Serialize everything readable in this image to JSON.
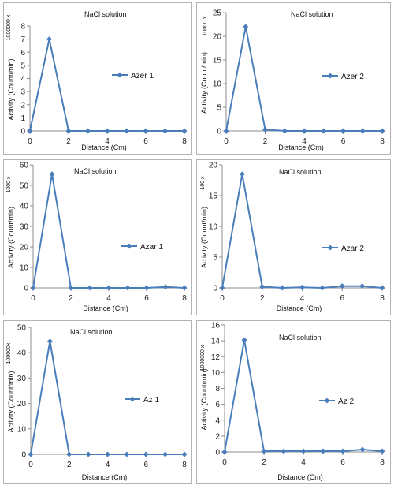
{
  "chart_data": [
    {
      "type": "line",
      "title": "NaCl solution",
      "xlabel": "Distance (Cm)",
      "ylabel": "Activity (Count/min)",
      "multiplier_label": "1000000 x",
      "xlim": [
        0,
        8
      ],
      "ylim": [
        0,
        8
      ],
      "xticks": [
        0,
        2,
        4,
        6,
        8
      ],
      "yticks": [
        0,
        1,
        2,
        3,
        4,
        5,
        6,
        7,
        8
      ],
      "legend_placement": "right",
      "series": [
        {
          "name": "Azer 1",
          "x": [
            0,
            1,
            2,
            3,
            4,
            5,
            6,
            7,
            8
          ],
          "y": [
            0,
            7,
            0,
            0,
            0,
            0,
            0,
            0,
            0
          ]
        }
      ]
    },
    {
      "type": "line",
      "title": "NaCl solution",
      "xlabel": "Distance (Cm)",
      "ylabel": "Activity (Count/min)",
      "multiplier_label": "10000 x",
      "xlim": [
        0,
        8
      ],
      "ylim": [
        0,
        25
      ],
      "xticks": [
        0,
        2,
        4,
        6,
        8
      ],
      "yticks": [
        0,
        5,
        10,
        15,
        20,
        25
      ],
      "legend_placement": "right",
      "series": [
        {
          "name": "Azer 2",
          "x": [
            0,
            1,
            2,
            3,
            4,
            5,
            6,
            7,
            8
          ],
          "y": [
            0,
            22,
            0.3,
            0,
            0,
            0,
            0,
            0,
            0
          ]
        }
      ]
    },
    {
      "type": "line",
      "title": "NaCl solution",
      "xlabel": "Distance (Cm)",
      "ylabel": "Activity (Count/min)",
      "multiplier_label": "1000 x",
      "xlim": [
        0,
        8
      ],
      "ylim": [
        0,
        60
      ],
      "xticks": [
        0,
        2,
        4,
        6,
        8
      ],
      "yticks": [
        0,
        10,
        20,
        30,
        40,
        50,
        60
      ],
      "legend_placement": "right",
      "series": [
        {
          "name": "Azar 1",
          "x": [
            0,
            1,
            2,
            3,
            4,
            5,
            6,
            7,
            8
          ],
          "y": [
            0,
            55.5,
            0,
            0,
            0,
            0,
            0,
            0.5,
            0
          ]
        }
      ]
    },
    {
      "type": "line",
      "title": "NaCl solution",
      "xlabel": "Distance (Cm)",
      "ylabel": "Activity (Count/min)",
      "multiplier_label": "100 x",
      "xlim": [
        0,
        8
      ],
      "ylim": [
        0,
        20
      ],
      "xticks": [
        0,
        2,
        4,
        6,
        8
      ],
      "yticks": [
        0,
        5,
        10,
        15,
        20
      ],
      "legend_placement": "right",
      "series": [
        {
          "name": "Azar 2",
          "x": [
            0,
            1,
            2,
            3,
            4,
            5,
            6,
            7,
            8
          ],
          "y": [
            0,
            18.5,
            0.2,
            0,
            0.1,
            0,
            0.3,
            0.3,
            0
          ]
        }
      ]
    },
    {
      "type": "line",
      "title": "NaCl solution",
      "xlabel": "Distance (Cm)",
      "ylabel": "Activity (Count/min)",
      "multiplier_label": "100000x",
      "xlim": [
        0,
        8
      ],
      "ylim": [
        0,
        50
      ],
      "xticks": [
        0,
        2,
        4,
        6,
        8
      ],
      "yticks": [
        0,
        10,
        20,
        30,
        40,
        50
      ],
      "legend_placement": "right",
      "series": [
        {
          "name": "Az 1",
          "x": [
            0,
            1,
            2,
            3,
            4,
            5,
            6,
            7,
            8
          ],
          "y": [
            0,
            44.5,
            0,
            0,
            0,
            0,
            0,
            0,
            0
          ]
        }
      ]
    },
    {
      "type": "line",
      "title": "NaCl solution",
      "xlabel": "Distance (Cm)",
      "ylabel": "Activity (Count/min)",
      "multiplier_label": "1000000 x",
      "xlim": [
        0,
        8
      ],
      "ylim": [
        0,
        16
      ],
      "xticks": [
        0,
        2,
        4,
        6,
        8
      ],
      "yticks": [
        0,
        2,
        4,
        6,
        8,
        10,
        12,
        14,
        16
      ],
      "legend_placement": "right",
      "series": [
        {
          "name": "Az 2",
          "x": [
            0,
            1,
            2,
            3,
            4,
            5,
            6,
            7,
            8
          ],
          "y": [
            0,
            14.1,
            0.1,
            0.1,
            0.1,
            0.1,
            0.1,
            0.3,
            0.1
          ]
        }
      ]
    }
  ]
}
